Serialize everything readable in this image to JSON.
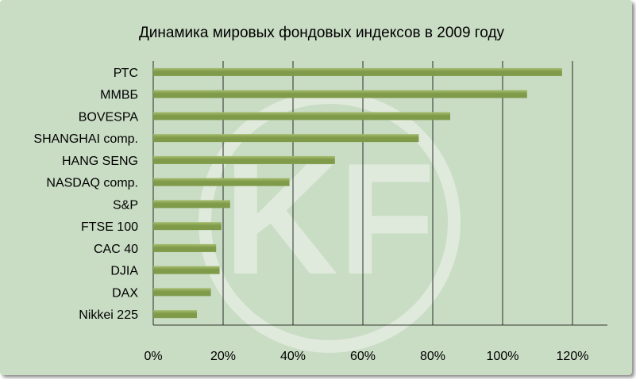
{
  "chart_data": {
    "type": "bar",
    "orientation": "horizontal",
    "title": "Динамика мировых фондовых индексов в 2009 году",
    "xlabel": "",
    "ylabel": "",
    "categories": [
      "РТС",
      "ММВБ",
      "BOVESPA",
      "SHANGHAI comp.",
      "HANG SENG",
      "NASDAQ comp.",
      "S&P",
      "FTSE 100",
      "CAC 40",
      "DJIA",
      "DAX",
      "Nikkei 225"
    ],
    "values": [
      117,
      107,
      85,
      76,
      52,
      39,
      22,
      19.5,
      18,
      19,
      16.5,
      12.5
    ],
    "value_unit": "%",
    "xlim": [
      0,
      130
    ],
    "x_ticks": [
      0,
      20,
      40,
      60,
      80,
      100,
      120
    ],
    "x_tick_labels": [
      "0%",
      "20%",
      "40%",
      "60%",
      "80%",
      "100%",
      "120%"
    ],
    "grid": "vertical",
    "legend": "none",
    "watermark_text": "KF",
    "colors": {
      "background": "#c9dcc4",
      "bar": "#7f9a48",
      "bar_highlight": "#a6bd70",
      "grid": "#000000",
      "watermark": "#dfe9dc"
    }
  }
}
